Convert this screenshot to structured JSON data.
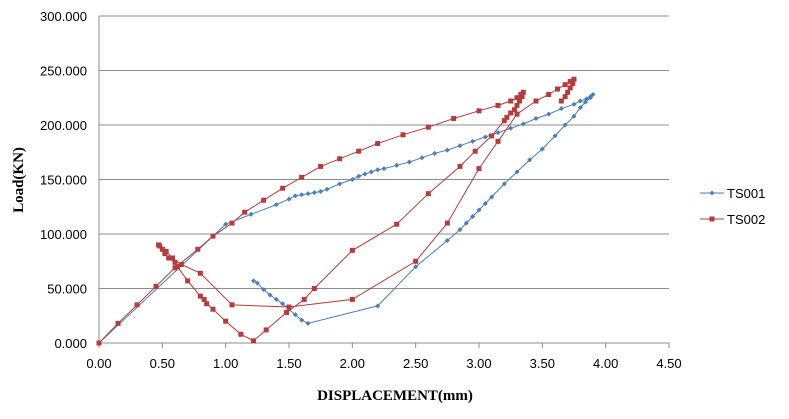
{
  "chart_data": {
    "type": "scatter",
    "title": "",
    "xlabel": "DISPLACEMENT(mm)",
    "ylabel": "Load(KN)",
    "xlim": [
      0,
      4.5
    ],
    "ylim": [
      0,
      300
    ],
    "x_ticks": [
      "0.00",
      "0.50",
      "1.00",
      "1.50",
      "2.00",
      "2.50",
      "3.00",
      "3.50",
      "4.00",
      "4.50"
    ],
    "y_ticks": [
      "0.000",
      "50.000",
      "100.000",
      "150.000",
      "200.000",
      "250.000",
      "300.000"
    ],
    "grid": "horizontal",
    "legend_position": "right",
    "series": [
      {
        "name": "TS001",
        "color": "#4a7ebb",
        "marker": "diamond",
        "points": [
          [
            0.0,
            0
          ],
          [
            1.0,
            109
          ],
          [
            1.2,
            118
          ],
          [
            1.4,
            127
          ],
          [
            1.5,
            132
          ],
          [
            1.55,
            135
          ],
          [
            1.6,
            136
          ],
          [
            1.65,
            137
          ],
          [
            1.7,
            138
          ],
          [
            1.75,
            139
          ],
          [
            1.8,
            141
          ],
          [
            1.9,
            146
          ],
          [
            2.0,
            150
          ],
          [
            2.05,
            153
          ],
          [
            2.1,
            155
          ],
          [
            2.15,
            157
          ],
          [
            2.2,
            159
          ],
          [
            2.25,
            160
          ],
          [
            2.35,
            163
          ],
          [
            2.45,
            166
          ],
          [
            2.55,
            170
          ],
          [
            2.65,
            174
          ],
          [
            2.75,
            177
          ],
          [
            2.85,
            181
          ],
          [
            2.95,
            185
          ],
          [
            3.05,
            189
          ],
          [
            3.15,
            193
          ],
          [
            3.25,
            197
          ],
          [
            3.35,
            201
          ],
          [
            3.45,
            206
          ],
          [
            3.55,
            210
          ],
          [
            3.65,
            215
          ],
          [
            3.75,
            219
          ],
          [
            3.8,
            222
          ],
          [
            3.85,
            224
          ],
          [
            3.88,
            226
          ],
          [
            3.9,
            228
          ],
          [
            3.88,
            225
          ],
          [
            3.84,
            221
          ],
          [
            3.8,
            216
          ],
          [
            3.75,
            208
          ],
          [
            3.68,
            200
          ],
          [
            3.6,
            190
          ],
          [
            3.5,
            178
          ],
          [
            3.4,
            168
          ],
          [
            3.3,
            157
          ],
          [
            3.2,
            146
          ],
          [
            3.1,
            134
          ],
          [
            3.05,
            128
          ],
          [
            3.0,
            122
          ],
          [
            2.95,
            116
          ],
          [
            2.9,
            110
          ],
          [
            2.85,
            104
          ],
          [
            2.75,
            94
          ],
          [
            2.5,
            70
          ],
          [
            2.2,
            34
          ],
          [
            1.65,
            18
          ],
          [
            1.6,
            21
          ],
          [
            1.55,
            26
          ],
          [
            1.5,
            31
          ],
          [
            1.45,
            36
          ],
          [
            1.4,
            40
          ],
          [
            1.35,
            44
          ],
          [
            1.3,
            49
          ],
          [
            1.25,
            55
          ],
          [
            1.22,
            57
          ]
        ]
      },
      {
        "name": "TS002",
        "color": "#b33c3c",
        "marker": "square",
        "points": [
          [
            0.0,
            0
          ],
          [
            0.15,
            18
          ],
          [
            0.3,
            35
          ],
          [
            0.45,
            52
          ],
          [
            0.6,
            69
          ],
          [
            0.78,
            86
          ],
          [
            0.9,
            98
          ],
          [
            1.05,
            110
          ],
          [
            1.15,
            120
          ],
          [
            1.3,
            131
          ],
          [
            1.45,
            142
          ],
          [
            1.6,
            152
          ],
          [
            1.75,
            162
          ],
          [
            1.9,
            169
          ],
          [
            2.05,
            176
          ],
          [
            2.2,
            183
          ],
          [
            2.4,
            191
          ],
          [
            2.6,
            198
          ],
          [
            2.8,
            206
          ],
          [
            3.0,
            213
          ],
          [
            3.15,
            218
          ],
          [
            3.25,
            222
          ],
          [
            3.3,
            225
          ],
          [
            3.33,
            228
          ],
          [
            3.35,
            230
          ],
          [
            3.34,
            226
          ],
          [
            3.32,
            222
          ],
          [
            3.3,
            218
          ],
          [
            3.28,
            214
          ],
          [
            3.25,
            211
          ],
          [
            3.22,
            207
          ],
          [
            3.2,
            204
          ],
          [
            3.1,
            190
          ],
          [
            2.97,
            176
          ],
          [
            2.85,
            162
          ],
          [
            2.6,
            137
          ],
          [
            2.35,
            109
          ],
          [
            2.0,
            85
          ],
          [
            1.7,
            50
          ],
          [
            1.62,
            40
          ],
          [
            1.48,
            28
          ],
          [
            1.32,
            12
          ],
          [
            1.22,
            2
          ],
          [
            1.12,
            8
          ],
          [
            1.0,
            20
          ],
          [
            0.9,
            31
          ],
          [
            0.85,
            36
          ],
          [
            0.83,
            40
          ],
          [
            0.8,
            43
          ],
          [
            0.7,
            57
          ],
          [
            0.62,
            70
          ],
          [
            0.6,
            74
          ],
          [
            0.55,
            78
          ],
          [
            0.52,
            82
          ],
          [
            0.5,
            86
          ],
          [
            0.48,
            89
          ],
          [
            0.47,
            90
          ],
          [
            0.53,
            84
          ],
          [
            0.58,
            78
          ],
          [
            0.65,
            72
          ],
          [
            0.8,
            64
          ],
          [
            1.05,
            35
          ],
          [
            1.5,
            33
          ],
          [
            2.0,
            40
          ],
          [
            2.5,
            75
          ],
          [
            2.75,
            110
          ],
          [
            3.0,
            160
          ],
          [
            3.15,
            185
          ],
          [
            3.3,
            210
          ],
          [
            3.45,
            222
          ],
          [
            3.55,
            228
          ],
          [
            3.62,
            233
          ],
          [
            3.68,
            237
          ],
          [
            3.72,
            240
          ],
          [
            3.75,
            242
          ],
          [
            3.74,
            238
          ],
          [
            3.72,
            234
          ],
          [
            3.7,
            230
          ],
          [
            3.68,
            226
          ],
          [
            3.65,
            222
          ]
        ]
      }
    ]
  }
}
